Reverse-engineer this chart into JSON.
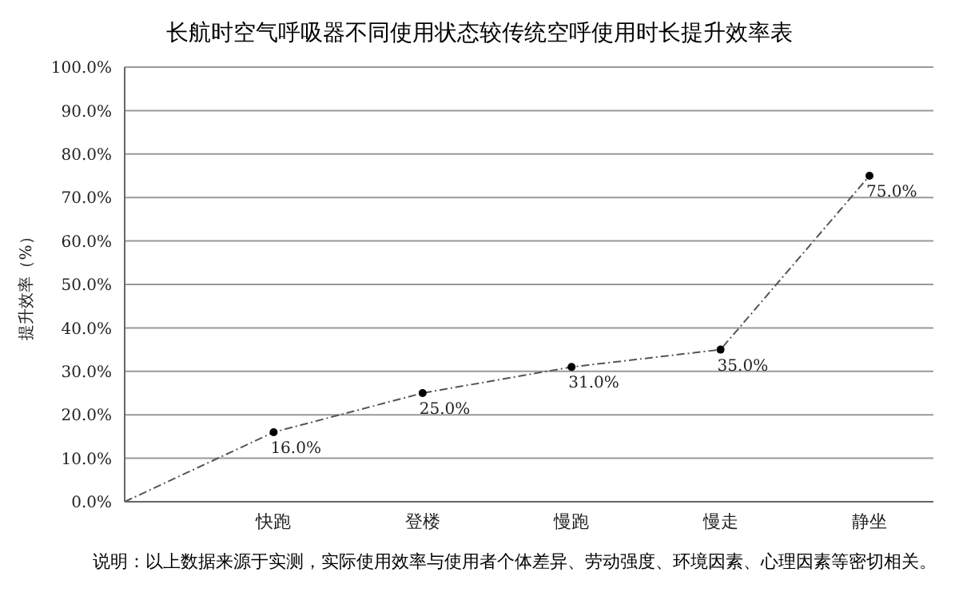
{
  "chart_data": {
    "type": "line",
    "title": "长航时空气呼吸器不同使用状态较传统空呼使用时长提升效率表",
    "ylabel": "提升效率（%）",
    "categories": [
      null,
      "快跑",
      "登楼",
      "慢跑",
      "慢走",
      "静坐"
    ],
    "series": [
      {
        "color": "#555555",
        "values": [
          0,
          16,
          25,
          31,
          35,
          75
        ],
        "value_labels": [
          null,
          "16.0%",
          "25.0%",
          "31.0%",
          "35.0%",
          "75.0%"
        ]
      }
    ],
    "ylim": [
      0,
      100
    ],
    "yticks": [
      {
        "value": 0,
        "label": "0.0%"
      },
      {
        "value": 10,
        "label": "10.0%"
      },
      {
        "value": 20,
        "label": "20.0%"
      },
      {
        "value": 30,
        "label": "30.0%"
      },
      {
        "value": 40,
        "label": "40.0%"
      },
      {
        "value": 50,
        "label": "50.0%"
      },
      {
        "value": 60,
        "label": "60.0%"
      },
      {
        "value": 70,
        "label": "70.0%"
      },
      {
        "value": 80,
        "label": "80.0%"
      },
      {
        "value": 90,
        "label": "90.0%"
      },
      {
        "value": 100,
        "label": "100.0%"
      }
    ],
    "grid": "y",
    "marker": "circle",
    "line_style": "dashed",
    "annotations": [
      "说明：以上数据来源于实测，实际使用效率与使用者个体差异、劳动强度、环境因素、心理因素等密切相关。"
    ]
  }
}
